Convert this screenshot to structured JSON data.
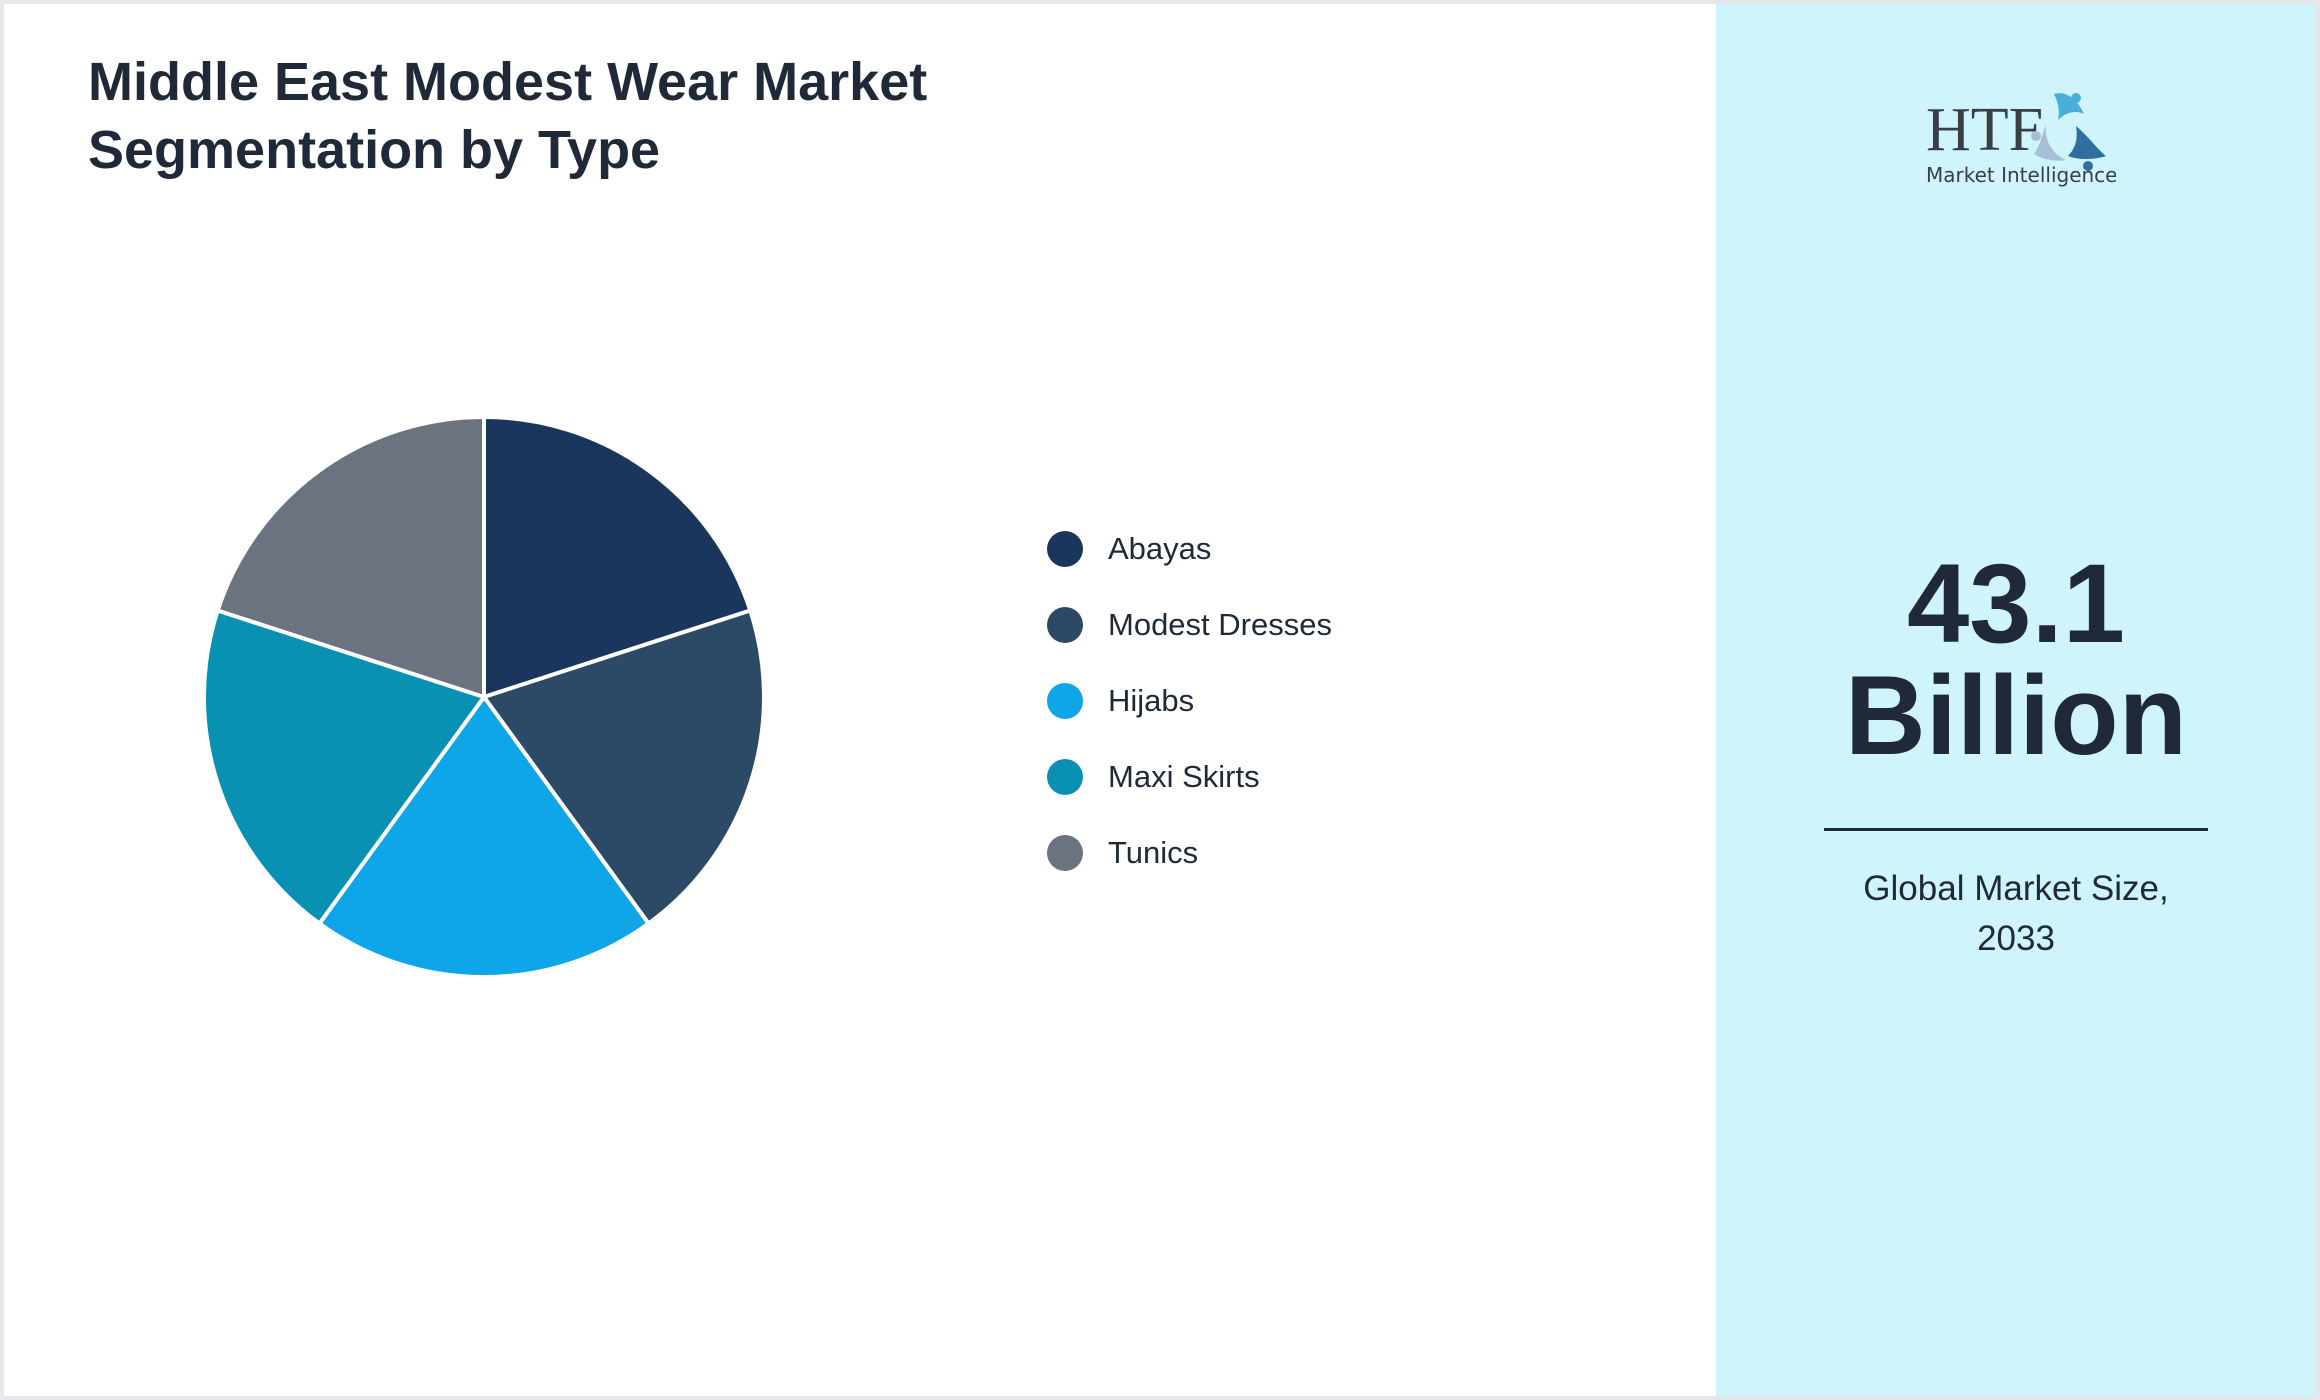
{
  "chart_data": {
    "type": "pie",
    "title": "Middle East Modest Wear Market Segmentation by Type",
    "categories": [
      "Abayas",
      "Modest Dresses",
      "Hijabs",
      "Maxi Skirts",
      "Tunics"
    ],
    "values": [
      20,
      20,
      20,
      20,
      20
    ],
    "colors": [
      "#1b365d",
      "#2c4a66",
      "#0ea5e9",
      "#0891b2",
      "#6b7280"
    ],
    "legend_position": "right"
  },
  "panel": {
    "logo_text": "HTF Market Intelligence",
    "value_line1": "43.1",
    "value_line2": "Billion",
    "caption_line1": "Global Market Size,",
    "caption_line2": "2033"
  }
}
